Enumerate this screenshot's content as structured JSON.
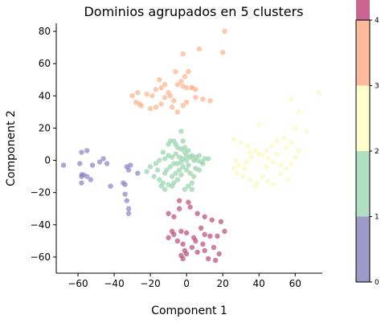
{
  "chart_data": {
    "type": "scatter",
    "title": "Dominios agrupados en 5 clusters",
    "xlabel": "Component 1",
    "ylabel": "Component 2",
    "xlim": [
      -72,
      75
    ],
    "ylim": [
      -70,
      85
    ],
    "xticks": [
      "−60",
      "−40",
      "−20",
      "0",
      "20",
      "40",
      "60"
    ],
    "xtick_values": [
      -60,
      -40,
      -20,
      0,
      20,
      40,
      60
    ],
    "yticks": [
      "−60",
      "−40",
      "−20",
      "0",
      "20",
      "40",
      "60",
      "80"
    ],
    "ytick_values": [
      -60,
      -40,
      -20,
      0,
      20,
      40,
      60,
      80
    ],
    "grid": false,
    "colorbar": {
      "range": [
        0,
        4
      ],
      "tick_labels": [
        "0",
        "1",
        "2",
        "3",
        "4"
      ],
      "tick_values": [
        0,
        1,
        2,
        3,
        4
      ],
      "colors": [
        "#9e9ac8",
        "#b2dfc2",
        "#ffffcc",
        "#fdbb9b",
        "#c9668f"
      ]
    },
    "series": [
      {
        "cluster": 0,
        "color": "#8c86c2",
        "points": [
          [
            -68,
            -3
          ],
          [
            -58,
            5
          ],
          [
            -55,
            6
          ],
          [
            -58,
            -9
          ],
          [
            -57,
            -9
          ],
          [
            -55,
            -10
          ],
          [
            -52,
            -3
          ],
          [
            -48,
            -1
          ],
          [
            -46,
            1
          ],
          [
            -44,
            -2
          ],
          [
            -53,
            -12
          ],
          [
            -58,
            -14
          ],
          [
            -59,
            -2
          ],
          [
            -42,
            -16
          ],
          [
            -35,
            -14
          ],
          [
            -34,
            -15
          ],
          [
            -33,
            -4
          ],
          [
            -32,
            -6
          ],
          [
            -31,
            -3
          ],
          [
            -34,
            -21
          ],
          [
            -33,
            -25
          ],
          [
            -32,
            -30
          ],
          [
            -32,
            -33
          ],
          [
            -27,
            -8
          ],
          [
            -58,
            -10
          ]
        ]
      },
      {
        "cluster": 1,
        "color": "#99d4ad",
        "points": [
          [
            -3,
            18
          ],
          [
            -6,
            10
          ],
          [
            -7,
            12
          ],
          [
            -9,
            12
          ],
          [
            -5,
            8
          ],
          [
            -3,
            7
          ],
          [
            -1,
            5
          ],
          [
            0,
            3
          ],
          [
            2,
            2
          ],
          [
            4,
            0
          ],
          [
            6,
            0
          ],
          [
            8,
            -1
          ],
          [
            10,
            1
          ],
          [
            12,
            1
          ],
          [
            -10,
            3
          ],
          [
            -12,
            1
          ],
          [
            -15,
            0
          ],
          [
            -17,
            -2
          ],
          [
            -20,
            -4
          ],
          [
            -22,
            -7
          ],
          [
            -18,
            -10
          ],
          [
            -15,
            -12
          ],
          [
            -13,
            -14
          ],
          [
            -10,
            -15
          ],
          [
            -8,
            -10
          ],
          [
            -6,
            -8
          ],
          [
            -4,
            -6
          ],
          [
            -2,
            -4
          ],
          [
            0,
            -6
          ],
          [
            2,
            -8
          ],
          [
            4,
            -10
          ],
          [
            3,
            -14
          ],
          [
            1,
            -16
          ],
          [
            -1,
            -18
          ],
          [
            -5,
            -12
          ],
          [
            -8,
            -16
          ],
          [
            -12,
            -18
          ],
          [
            -14,
            -16
          ],
          [
            -12,
            -8
          ],
          [
            -9,
            -4
          ],
          [
            -7,
            -2
          ],
          [
            -5,
            -2
          ],
          [
            -3,
            -1
          ],
          [
            -2,
            1
          ],
          [
            0,
            0
          ],
          [
            3,
            3
          ],
          [
            5,
            2
          ],
          [
            7,
            3
          ],
          [
            9,
            -2
          ],
          [
            -16,
            -6
          ],
          [
            -6,
            4
          ],
          [
            -4,
            2
          ],
          [
            1,
            -3
          ],
          [
            5,
            -5
          ],
          [
            -11,
            -6
          ],
          [
            -1,
            8
          ],
          [
            -8,
            2
          ],
          [
            -13,
            5
          ],
          [
            3,
            -18
          ],
          [
            7,
            -6
          ],
          [
            -10,
            10
          ],
          [
            -2,
            12
          ],
          [
            1,
            6
          ],
          [
            -7,
            -14
          ],
          [
            -3,
            -9
          ]
        ]
      },
      {
        "cluster": 2,
        "color": "#fbfbc4",
        "points": [
          [
            26,
            13
          ],
          [
            30,
            11
          ],
          [
            34,
            9
          ],
          [
            38,
            6
          ],
          [
            42,
            3
          ],
          [
            45,
            1
          ],
          [
            48,
            -1
          ],
          [
            52,
            -3
          ],
          [
            55,
            -5
          ],
          [
            58,
            -2
          ],
          [
            60,
            2
          ],
          [
            62,
            6
          ],
          [
            58,
            11
          ],
          [
            55,
            8
          ],
          [
            50,
            12
          ],
          [
            47,
            9
          ],
          [
            44,
            6
          ],
          [
            40,
            4
          ],
          [
            36,
            2
          ],
          [
            33,
            -1
          ],
          [
            29,
            -3
          ],
          [
            26,
            -5
          ],
          [
            28,
            -8
          ],
          [
            31,
            -10
          ],
          [
            35,
            -12
          ],
          [
            39,
            -14
          ],
          [
            42,
            -10
          ],
          [
            45,
            -13
          ],
          [
            48,
            -15
          ],
          [
            38,
            -16
          ],
          [
            52,
            -8
          ],
          [
            56,
            -12
          ],
          [
            60,
            20
          ],
          [
            73,
            42
          ],
          [
            58,
            38
          ],
          [
            62,
            30
          ],
          [
            40,
            22
          ],
          [
            66,
            18
          ],
          [
            35,
            5
          ],
          [
            44,
            -4
          ],
          [
            50,
            4
          ],
          [
            54,
            14
          ],
          [
            27,
            0
          ],
          [
            32,
            -5
          ]
        ]
      },
      {
        "cluster": 3,
        "color": "#fdb48e",
        "points": [
          [
            21,
            80
          ],
          [
            20,
            67
          ],
          [
            7,
            69
          ],
          [
            -2,
            66
          ],
          [
            1,
            55
          ],
          [
            -6,
            55
          ],
          [
            -15,
            50
          ],
          [
            -12,
            47
          ],
          [
            -3,
            49
          ],
          [
            -5,
            47
          ],
          [
            -2,
            46
          ],
          [
            0,
            45
          ],
          [
            3,
            45
          ],
          [
            5,
            44
          ],
          [
            -17,
            44
          ],
          [
            -19,
            40
          ],
          [
            -22,
            41
          ],
          [
            -27,
            42
          ],
          [
            -30,
            40
          ],
          [
            -26,
            35
          ],
          [
            -28,
            36
          ],
          [
            -25,
            34
          ],
          [
            -20,
            32
          ],
          [
            -17,
            33
          ],
          [
            -14,
            35
          ],
          [
            -12,
            39
          ],
          [
            -9,
            40
          ],
          [
            -7,
            37
          ],
          [
            -8,
            33
          ],
          [
            -5,
            30
          ],
          [
            -2,
            34
          ],
          [
            0,
            36
          ],
          [
            5,
            39
          ],
          [
            9,
            38
          ],
          [
            13,
            37
          ],
          [
            -10,
            42
          ],
          [
            -14,
            45
          ],
          [
            -1,
            52
          ],
          [
            3,
            45
          ]
        ]
      },
      {
        "cluster": 4,
        "color": "#bc4e7c",
        "points": [
          [
            -4,
            -25
          ],
          [
            1,
            -26
          ],
          [
            -10,
            -33
          ],
          [
            -7,
            -35
          ],
          [
            -4,
            -30
          ],
          [
            2,
            -29
          ],
          [
            6,
            -33
          ],
          [
            10,
            -35
          ],
          [
            14,
            -37
          ],
          [
            19,
            -38
          ],
          [
            21,
            -44
          ],
          [
            17,
            -47
          ],
          [
            13,
            -47
          ],
          [
            10,
            -46
          ],
          [
            8,
            -42
          ],
          [
            4,
            -48
          ],
          [
            0,
            -45
          ],
          [
            -3,
            -44
          ],
          [
            -8,
            -44
          ],
          [
            -10,
            -48
          ],
          [
            -5,
            -50
          ],
          [
            -2,
            -52
          ],
          [
            3,
            -54
          ],
          [
            6,
            -57
          ],
          [
            10,
            -56
          ],
          [
            15,
            -54
          ],
          [
            18,
            -58
          ],
          [
            16,
            -62
          ],
          [
            12,
            -61
          ],
          [
            0,
            -58
          ],
          [
            -1,
            -56
          ],
          [
            -3,
            -59
          ],
          [
            -2,
            -61
          ],
          [
            5,
            -50
          ],
          [
            9,
            -52
          ],
          [
            -7,
            -46
          ]
        ]
      }
    ]
  }
}
